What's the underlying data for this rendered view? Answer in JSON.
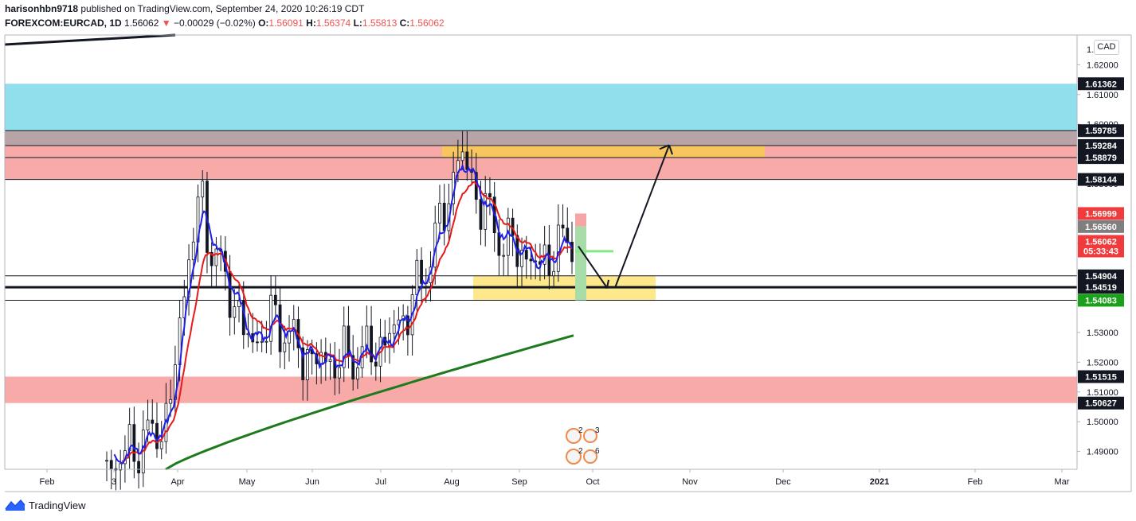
{
  "header": {
    "author": "harisonhbn9718",
    "published": "published on TradingView.com, September 24, 2020 10:26:19 CDT",
    "symbol": "FOREXCOM:EURCAD, 1D",
    "last": "1.56062",
    "change": "−0.00029 (−0.02%)",
    "o_label": "O:",
    "o_val": "1.56091",
    "h_label": "H:",
    "h_val": "1.56374",
    "l_label": "L:",
    "l_val": "1.55813",
    "c_label": "C:",
    "c_val": "1.56062"
  },
  "currency_button": "CAD",
  "brand": "TradingView",
  "colors": {
    "up": "#ef5350",
    "grid_text": "#131722",
    "blue_zone": "#8fe0ec",
    "pink_zone": "#f7aaa7",
    "mauve_zone": "#b8a3a6",
    "yellow_zone": "#fde98b",
    "orange_zone": "#f7c65f",
    "ema_fast": "#1f1fe8",
    "ema_slow": "#e81919",
    "ma_long": "#1d7a1d"
  },
  "chart_data": {
    "type": "candlestick",
    "y_axis": {
      "range": [
        1.484,
        1.63
      ],
      "ticks": [
        "1.62000",
        "1.61000",
        "1.60000",
        "1.59000",
        "1.58000",
        "1.57000",
        "1.56000",
        "1.55000",
        "1.54000",
        "1.53000",
        "1.52000",
        "1.51000",
        "1.50000",
        "1.49000"
      ],
      "top_tick_partial": "1."
    },
    "x_axis": {
      "labels": [
        "Feb",
        "3",
        "Apr",
        "May",
        "Jun",
        "Jul",
        "Aug",
        "Sep",
        "Oct",
        "Nov",
        "Dec",
        "2021",
        "Feb",
        "Mar"
      ],
      "bold_label": "2021"
    },
    "price_labels": [
      {
        "text": "1.61362",
        "value": 1.61362,
        "style": "black"
      },
      {
        "text": "1.59785",
        "value": 1.59785,
        "style": "black"
      },
      {
        "text": "1.59284",
        "value": 1.59284,
        "style": "black"
      },
      {
        "text": "1.58879",
        "value": 1.58879,
        "style": "black"
      },
      {
        "text": "1.58144",
        "value": 1.58144,
        "style": "black"
      },
      {
        "text": "1.56999",
        "value": 1.56999,
        "style": "red"
      },
      {
        "text": "1.56560",
        "value": 1.5656,
        "style": "grey"
      },
      {
        "text": "1.56062",
        "value": 1.56062,
        "style": "red"
      },
      {
        "text": "05:33:43",
        "value": 1.5574,
        "style": "red"
      },
      {
        "text": "1.54904",
        "value": 1.54904,
        "style": "black"
      },
      {
        "text": "1.54519",
        "value": 1.54519,
        "style": "black"
      },
      {
        "text": "1.54083",
        "value": 1.54083,
        "style": "green"
      },
      {
        "text": "1.51515",
        "value": 1.51515,
        "style": "black"
      },
      {
        "text": "1.50627",
        "value": 1.50627,
        "style": "black"
      }
    ],
    "zones": [
      {
        "name": "supply-blue",
        "from": 1.59785,
        "to": 1.61362,
        "color": "#8fe0ec"
      },
      {
        "name": "supply-mauve",
        "from": 1.59284,
        "to": 1.59785,
        "color": "#b8a3a6"
      },
      {
        "name": "supply-pink",
        "from": 1.58144,
        "to": 1.59284,
        "color": "#f7aaa7"
      },
      {
        "name": "demand-pink",
        "from": 1.50627,
        "to": 1.51515,
        "color": "#f7aaa7"
      },
      {
        "name": "target-orange",
        "from": 1.58879,
        "to": 1.59284,
        "color": "#f7c65f",
        "x_from": "Aug",
        "x_to": "Dec"
      },
      {
        "name": "entry-yellow",
        "from": 1.54083,
        "to": 1.54904,
        "color": "#fde98b",
        "x_from": "Aug",
        "x_to": "Oct"
      }
    ],
    "horizontal_lines": [
      1.59785,
      1.59284,
      1.58879,
      1.58144,
      1.54904,
      1.54519,
      1.54083
    ],
    "candles_summary": {
      "from": "Jan 2020",
      "to": "Sep 24 2020",
      "last_close": 1.56062,
      "high_of_period": 1.598,
      "low_of_period": 1.484
    },
    "position_tool": {
      "entry": 1.56062,
      "stop": 1.56999,
      "target": 1.54083
    },
    "projection_arrows": [
      {
        "from": [
          "Sep 24",
          1.559
        ],
        "to": [
          "Oct 10",
          1.545
        ]
      },
      {
        "from": [
          "Oct 10",
          1.545
        ],
        "to": [
          "Nov 18",
          1.593
        ]
      }
    ],
    "events": [
      {
        "count": "2",
        "extra": "3"
      },
      {
        "count": "2",
        "extra": "6"
      }
    ]
  }
}
